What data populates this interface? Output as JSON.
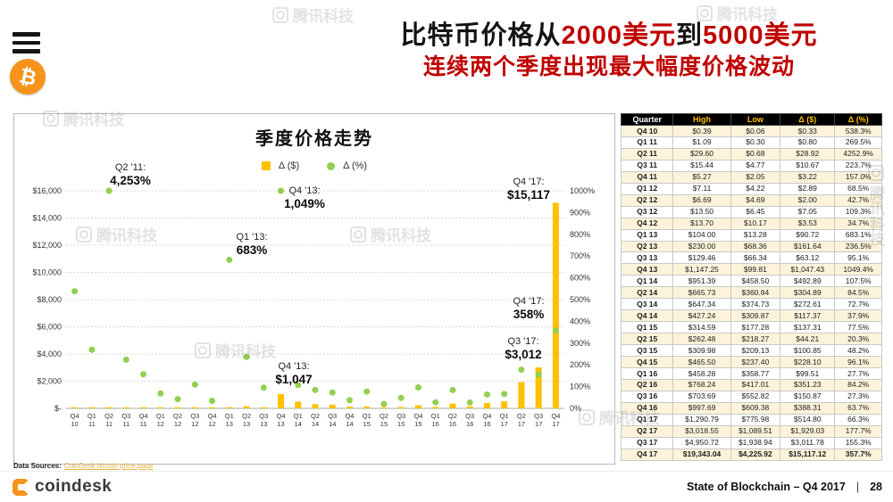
{
  "colors": {
    "accent_red": "#C00000",
    "bar_yellow": "#FFC000",
    "dot_green": "#92D050",
    "bitcoin_orange": "#F7931A",
    "link_orange": "#E9B03C"
  },
  "watermark": {
    "text": "腾讯科技"
  },
  "icons": {
    "bitcoin_glyph": "₿"
  },
  "header": {
    "title1_parts": [
      {
        "text": "比特币价格从"
      },
      {
        "text": "2000美元",
        "highlight": true
      },
      {
        "text": "到"
      },
      {
        "text": "5000美元",
        "highlight": true
      }
    ],
    "title_line2": "连续两个季度出现最大幅度价格波动"
  },
  "chart_data": {
    "type": "bar",
    "title": "季度价格走势",
    "grid": true,
    "legend_position": "top",
    "categories": [
      "Q4 10",
      "Q1 11",
      "Q2 11",
      "Q3 11",
      "Q4 11",
      "Q1 12",
      "Q2 12",
      "Q3 12",
      "Q4 12",
      "Q1 13",
      "Q2 13",
      "Q3 13",
      "Q4 13",
      "Q1 14",
      "Q2 14",
      "Q3 14",
      "Q4 14",
      "Q1 15",
      "Q2 15",
      "Q3 15",
      "Q4 15",
      "Q1 16",
      "Q2 16",
      "Q3 16",
      "Q4 16",
      "Q1 17",
      "Q2 17",
      "Q3 17",
      "Q4 17"
    ],
    "series": [
      {
        "name": "Δ ($)",
        "type": "bar",
        "axis": "left",
        "color": "#FFC000",
        "values": [
          0.33,
          0.8,
          28.92,
          10.67,
          3.22,
          2.89,
          2.0,
          7.05,
          3.53,
          90.72,
          161.64,
          63.12,
          1047.43,
          492.89,
          304.89,
          272.61,
          117.37,
          137.31,
          44.21,
          100.85,
          228.1,
          99.51,
          351.23,
          150.87,
          388.31,
          514.8,
          1929.03,
          3011.78,
          15117.12
        ]
      },
      {
        "name": "Δ (%)",
        "type": "scatter",
        "axis": "right",
        "color": "#92D050",
        "values": [
          538.3,
          269.5,
          4252.9,
          223.7,
          157.0,
          68.5,
          42.7,
          109.3,
          34.7,
          683.1,
          236.5,
          95.1,
          1049.4,
          107.5,
          84.5,
          72.7,
          37.9,
          77.5,
          20.3,
          48.2,
          96.1,
          27.7,
          84.2,
          27.3,
          63.7,
          66.3,
          177.7,
          155.3,
          357.7
        ]
      }
    ],
    "ylim_left": [
      0,
      16000
    ],
    "ylim_right": [
      0,
      1000
    ],
    "left_ticks": [
      "$-",
      "$2,000",
      "$4,000",
      "$6,000",
      "$8,000",
      "$10,000",
      "$12,000",
      "$14,000",
      "$16,000"
    ],
    "right_ticks": [
      "0%",
      "100%",
      "200%",
      "300%",
      "400%",
      "500%",
      "600%",
      "700%",
      "800%",
      "900%",
      "1000%"
    ],
    "annotations": [
      {
        "label": "Q2 '11:",
        "value": "4,253%"
      },
      {
        "label": "Q4 '13:",
        "value": "1,049%"
      },
      {
        "label": "Q1 '13:",
        "value": "683%"
      },
      {
        "label": "Q4 '17:",
        "value": "$15,117"
      },
      {
        "label": "Q4 '17:",
        "value": "358%"
      },
      {
        "label": "Q3 '17:",
        "value": "$3,012"
      },
      {
        "label": "Q4 '13:",
        "value": "$1,047"
      }
    ]
  },
  "table": {
    "headers": [
      "Quarter",
      "High",
      "Low",
      "Δ ($)",
      "Δ (%)"
    ],
    "rows": [
      [
        "Q4 10",
        "$0.39",
        "$0.06",
        "$0.33",
        "538.3%"
      ],
      [
        "Q1 11",
        "$1.09",
        "$0.30",
        "$0.80",
        "269.5%"
      ],
      [
        "Q2 11",
        "$29.60",
        "$0.68",
        "$28.92",
        "4252.9%"
      ],
      [
        "Q3 11",
        "$15.44",
        "$4.77",
        "$10.67",
        "223.7%"
      ],
      [
        "Q4 11",
        "$5.27",
        "$2.05",
        "$3.22",
        "157.0%"
      ],
      [
        "Q1 12",
        "$7.11",
        "$4.22",
        "$2.89",
        "68.5%"
      ],
      [
        "Q2 12",
        "$6.69",
        "$4.69",
        "$2.00",
        "42.7%"
      ],
      [
        "Q3 12",
        "$13.50",
        "$6.45",
        "$7.05",
        "109.3%"
      ],
      [
        "Q4 12",
        "$13.70",
        "$10.17",
        "$3.53",
        "34.7%"
      ],
      [
        "Q1 13",
        "$104.00",
        "$13.28",
        "$90.72",
        "683.1%"
      ],
      [
        "Q2 13",
        "$230.00",
        "$68.36",
        "$161.64",
        "236.5%"
      ],
      [
        "Q3 13",
        "$129.46",
        "$66.34",
        "$63.12",
        "95.1%"
      ],
      [
        "Q4 13",
        "$1,147.25",
        "$99.81",
        "$1,047.43",
        "1049.4%"
      ],
      [
        "Q1 14",
        "$951.39",
        "$458.50",
        "$492.89",
        "107.5%"
      ],
      [
        "Q2 14",
        "$665.73",
        "$360.84",
        "$304.89",
        "84.5%"
      ],
      [
        "Q3 14",
        "$647.34",
        "$374.73",
        "$272.61",
        "72.7%"
      ],
      [
        "Q4 14",
        "$427.24",
        "$309.87",
        "$117.37",
        "37.9%"
      ],
      [
        "Q1 15",
        "$314.59",
        "$177.28",
        "$137.31",
        "77.5%"
      ],
      [
        "Q2 15",
        "$262.48",
        "$218.27",
        "$44.21",
        "20.3%"
      ],
      [
        "Q3 15",
        "$309.98",
        "$209.13",
        "$100.85",
        "48.2%"
      ],
      [
        "Q4 15",
        "$465.50",
        "$237.40",
        "$228.10",
        "96.1%"
      ],
      [
        "Q1 16",
        "$458.28",
        "$358.77",
        "$99.51",
        "27.7%"
      ],
      [
        "Q2 16",
        "$768.24",
        "$417.01",
        "$351.23",
        "84.2%"
      ],
      [
        "Q3 16",
        "$703.69",
        "$552.82",
        "$150.87",
        "27.3%"
      ],
      [
        "Q4 16",
        "$997.69",
        "$609.38",
        "$388.31",
        "63.7%"
      ],
      [
        "Q1 17",
        "$1,290.79",
        "$775.98",
        "$514.80",
        "66.3%"
      ],
      [
        "Q2 17",
        "$3,018.55",
        "$1,089.51",
        "$1,929.03",
        "177.7%"
      ],
      [
        "Q3 17",
        "$4,950.72",
        "$1,938.94",
        "$3,011.78",
        "155.3%"
      ],
      [
        "Q4 17",
        "$19,343.04",
        "$4,225.92",
        "$15,117.12",
        "357.7%"
      ]
    ]
  },
  "footer": {
    "data_sources_label": "Data Sources:",
    "data_source_link": "CoinDesk bitcoin price page",
    "brand": "coindesk",
    "right_text": "State of Blockchain – Q4 2017",
    "divider": "|",
    "page_number": "28"
  }
}
